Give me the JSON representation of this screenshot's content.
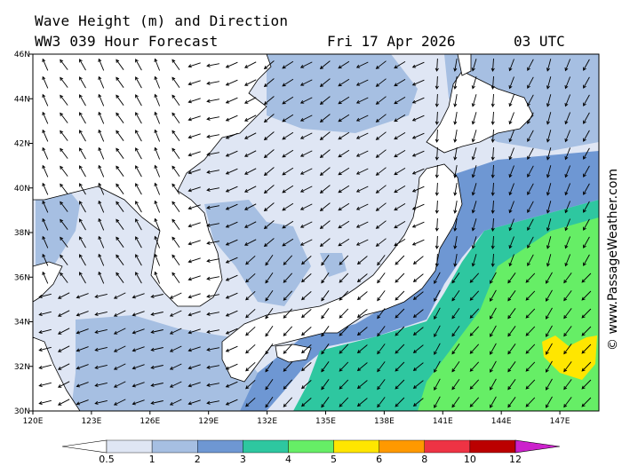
{
  "header": {
    "line1": "Wave Height (m) and Direction",
    "line2": "WW3 039 Hour Forecast",
    "date": "Fri 17 Apr 2026",
    "time": "03 UTC"
  },
  "map": {
    "lat_range": [
      30,
      46
    ],
    "lon_range": [
      120,
      149
    ],
    "lat_ticks": [
      "30N",
      "32N",
      "34N",
      "36N",
      "38N",
      "40N",
      "42N",
      "44N",
      "46N"
    ],
    "lon_ticks": [
      "120E",
      "123E",
      "126E",
      "129E",
      "132E",
      "135E",
      "138E",
      "141E",
      "144E",
      "147E"
    ],
    "land_color": "#ffffff",
    "coast_color": "#000000"
  },
  "colorbar": {
    "labels": [
      "0.5",
      "1",
      "2",
      "3",
      "4",
      "5",
      "6",
      "8",
      "10",
      "12"
    ],
    "colors": [
      "#ffffff",
      "#dfe6f4",
      "#a6bfe2",
      "#6e97d3",
      "#2ec7a0",
      "#66ee66",
      "#ffe600",
      "#ff9900",
      "#ee3344",
      "#bb0000",
      "#cc22cc"
    ]
  },
  "credit": "© www.PassageWeather.com"
}
